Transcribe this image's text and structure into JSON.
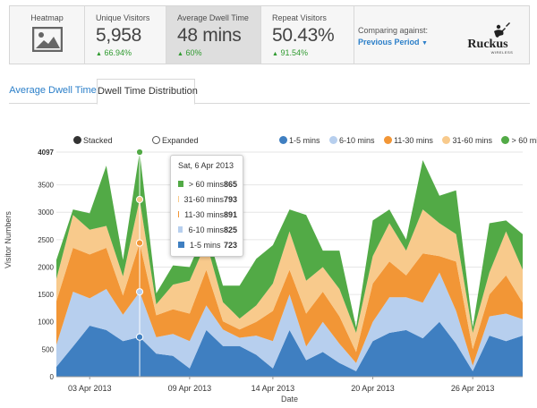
{
  "stats": {
    "heatmap_label": "Heatmap",
    "unique_visitors": {
      "label": "Unique Visitors",
      "value": "5,958",
      "change": "66.94%"
    },
    "avg_dwell": {
      "label": "Average Dwell Time",
      "value": "48 mins",
      "change": "60%"
    },
    "repeat_visitors": {
      "label": "Repeat Visitors",
      "value": "50.43%",
      "change": "91.54%"
    },
    "comparing": {
      "label": "Comparing against:",
      "value": "Previous Period"
    },
    "logo": {
      "brand": "Ruckus",
      "sub": "WIRELESS"
    }
  },
  "tabs": [
    {
      "label": "Average Dwell Time",
      "active": false
    },
    {
      "label": "Dwell Time Distribution",
      "active": true
    }
  ],
  "view_options": {
    "stacked": "Stacked",
    "expanded": "Expanded"
  },
  "colors": {
    "s1": "#3f7fc1",
    "s2": "#b7cfee",
    "s3": "#f29636",
    "s4": "#f8ca8c",
    "s5": "#52aa46",
    "change_up": "#2f9a2f",
    "link": "#2b7fc9"
  },
  "tooltip": {
    "title": "Sat, 6 Apr 2013",
    "rows": [
      {
        "label": "> 60 mins",
        "value": "865"
      },
      {
        "label": "31-60 mins",
        "value": "793"
      },
      {
        "label": "11-30 mins",
        "value": "891"
      },
      {
        "label": "6-10 mins",
        "value": "825"
      },
      {
        "label": "1-5 mins",
        "value": "723"
      }
    ]
  },
  "chart_data": {
    "type": "area",
    "stacked": true,
    "xlabel": "Date",
    "ylabel": "Visitor Numbers",
    "ylim": [
      0,
      4097
    ],
    "yticks": [
      0,
      500,
      1000,
      1500,
      2000,
      2500,
      3000,
      3500,
      4097
    ],
    "x": [
      "2013-04-01",
      "2013-04-02",
      "2013-04-03",
      "2013-04-04",
      "2013-04-05",
      "2013-04-06",
      "2013-04-07",
      "2013-04-08",
      "2013-04-09",
      "2013-04-10",
      "2013-04-11",
      "2013-04-12",
      "2013-04-13",
      "2013-04-14",
      "2013-04-15",
      "2013-04-16",
      "2013-04-17",
      "2013-04-18",
      "2013-04-19",
      "2013-04-20",
      "2013-04-21",
      "2013-04-22",
      "2013-04-23",
      "2013-04-24",
      "2013-04-25",
      "2013-04-26",
      "2013-04-27",
      "2013-04-28",
      "2013-04-29"
    ],
    "xtick_labels": [
      "03 Apr 2013",
      "09 Apr 2013",
      "14 Apr 2013",
      "20 Apr 2013",
      "26 Apr 2013"
    ],
    "xtick_dates": [
      "2013-04-03",
      "2013-04-09",
      "2013-04-14",
      "2013-04-20",
      "2013-04-26"
    ],
    "series": [
      {
        "name": "1-5 mins",
        "values": [
          180,
          550,
          930,
          850,
          650,
          723,
          420,
          380,
          150,
          850,
          560,
          560,
          400,
          150,
          850,
          300,
          450,
          250,
          100,
          650,
          800,
          850,
          700,
          1000,
          600,
          100,
          750,
          650,
          750
        ]
      },
      {
        "name": "6-10 mins",
        "values": [
          400,
          1000,
          500,
          750,
          480,
          825,
          300,
          400,
          500,
          450,
          300,
          150,
          350,
          500,
          650,
          250,
          550,
          350,
          150,
          350,
          650,
          600,
          650,
          900,
          600,
          100,
          350,
          500,
          300
        ]
      },
      {
        "name": "11-30 mins",
        "values": [
          800,
          800,
          800,
          750,
          350,
          891,
          400,
          450,
          500,
          650,
          150,
          150,
          250,
          550,
          450,
          600,
          550,
          500,
          200,
          700,
          650,
          400,
          900,
          300,
          900,
          300,
          400,
          700,
          300
        ]
      },
      {
        "name": "31-60 mins",
        "values": [
          400,
          600,
          450,
          400,
          350,
          793,
          200,
          450,
          600,
          500,
          350,
          200,
          300,
          500,
          700,
          600,
          450,
          500,
          350,
          500,
          700,
          450,
          800,
          600,
          500,
          300,
          400,
          800,
          600
        ]
      },
      {
        "name": "> 60 mins",
        "values": [
          350,
          100,
          300,
          1100,
          300,
          865,
          200,
          350,
          250,
          250,
          300,
          600,
          850,
          700,
          400,
          1200,
          300,
          700,
          100,
          650,
          250,
          200,
          900,
          500,
          800,
          100,
          900,
          200,
          650
        ]
      }
    ],
    "highlight_date": "2013-04-06",
    "legend_position": "top-right"
  }
}
